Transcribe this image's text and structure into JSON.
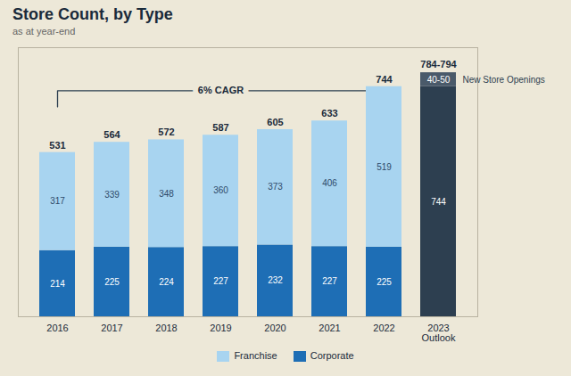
{
  "chart_data": {
    "type": "bar",
    "stacked": true,
    "title": "Store Count, by Type",
    "subtitle": "as at year-end",
    "background_color": "#ede8d8",
    "title_color": "#1a2a3a",
    "categories": [
      "2016",
      "2017",
      "2018",
      "2019",
      "2020",
      "2021",
      "2022",
      "2023\nOutlook"
    ],
    "series": [
      {
        "name": "Corporate",
        "color": "#1e6eb5",
        "values": [
          214,
          225,
          224,
          227,
          232,
          227,
          225,
          null
        ]
      },
      {
        "name": "Franchise",
        "color": "#a8d4f0",
        "values": [
          317,
          339,
          348,
          360,
          373,
          406,
          519,
          null
        ]
      }
    ],
    "totals": [
      531,
      564,
      572,
      587,
      605,
      633,
      744,
      null
    ],
    "outlook": {
      "values": [
        744,
        45
      ],
      "value_labels": [
        "744",
        "40-50"
      ],
      "colors": [
        "#2d3f50",
        "#4a5a6a"
      ],
      "total_label": "784-794",
      "annotation": "New Store Openings"
    },
    "cagr_label": "6% CAGR",
    "bracket_color": "#2d3f50",
    "ylim": [
      0,
      870
    ],
    "tick_labels": "x",
    "data_labels": true,
    "grid": false,
    "legend": "bottom"
  }
}
